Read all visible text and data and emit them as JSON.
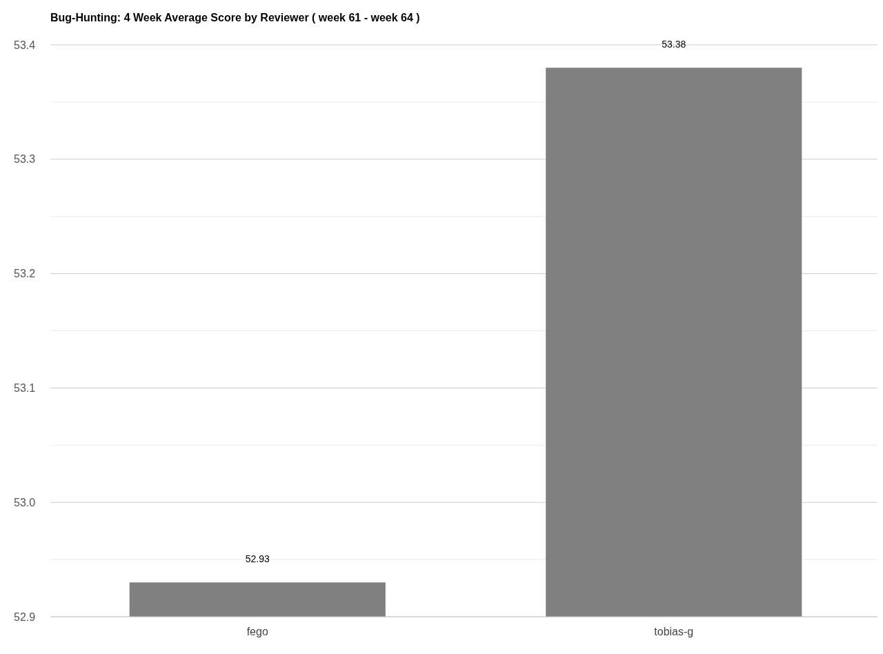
{
  "chart_data": {
    "type": "bar",
    "title": "Bug-Hunting: 4 Week Average Score by Reviewer ( week 61 - week 64 )",
    "categories": [
      "fego",
      "tobias-g"
    ],
    "values": [
      52.93,
      53.38
    ],
    "color": "#808080",
    "ylim": [
      52.9,
      53.4
    ],
    "yticks": [
      52.9,
      {
        "value": 52.95,
        "label": null
      },
      {
        "value": 53.0,
        "label": "53.0"
      },
      {
        "value": 53.05,
        "label": null
      },
      53.1,
      {
        "value": 53.15,
        "label": null
      },
      53.2,
      {
        "value": 53.25,
        "label": null
      },
      53.3,
      {
        "value": 53.35,
        "label": null
      },
      53.4
    ],
    "grid": "y",
    "data_labels": true
  }
}
